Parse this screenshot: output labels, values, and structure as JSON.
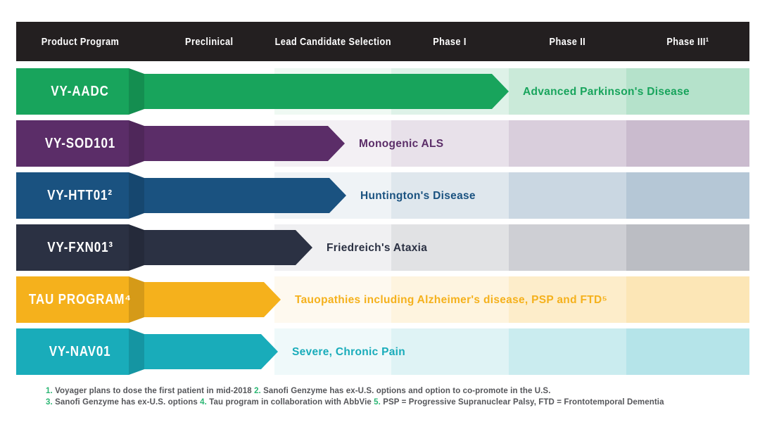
{
  "header": {
    "background": "#231F20",
    "text_color": "#FFFFFF",
    "columns": [
      "Product Program",
      "Preclinical",
      "Lead Candidate Selection",
      "Phase I",
      "Phase II",
      "Phase III¹"
    ]
  },
  "rows": [
    {
      "program": "VY-AADC",
      "indication": "Advanced Parkinson's Disease",
      "color": "#18A45C",
      "bar_end": 700
    },
    {
      "program": "VY-SOD101",
      "indication": "Monogenic ALS",
      "color": "#5B2D68",
      "bar_end": 467
    },
    {
      "program": "VY-HTT01²",
      "indication": "Huntington's Disease",
      "color": "#1A5280",
      "bar_end": 469
    },
    {
      "program": "VY-FXN01³",
      "indication": "Friedreich's Ataxia",
      "color": "#2B3143",
      "bar_end": 421
    },
    {
      "program": "TAU PROGRAM⁴",
      "indication": "Tauopathies including Alzheimer's disease, PSP and FTD⁵",
      "color": "#F5B11C",
      "bar_end": 376
    },
    {
      "program": "VY-NAV01",
      "indication": "Severe, Chronic Pain",
      "color": "#19ACBA",
      "bar_end": 372
    }
  ],
  "footnotes": {
    "accent_color": "#2BB673",
    "text_color": "#55565A",
    "lines": [
      [
        {
          "t": "1.",
          "accent": true
        },
        {
          "t": " Voyager plans to dose the first patient in mid-2018 ",
          "accent": false
        },
        {
          "t": "2.",
          "accent": true
        },
        {
          "t": " Sanofi Genzyme has ex-U.S. options and option to co-promote in the U.S.",
          "accent": false
        }
      ],
      [
        {
          "t": "3.",
          "accent": true
        },
        {
          "t": " Sanofi Genzyme has ex-U.S. options ",
          "accent": false
        },
        {
          "t": "4.",
          "accent": true
        },
        {
          "t": " Tau program in collaboration with AbbVie ",
          "accent": false
        },
        {
          "t": "5.",
          "accent": true
        },
        {
          "t": " PSP = Progressive Supranuclear Palsy, FTD = Frontotemporal Dementia",
          "accent": false
        }
      ]
    ]
  }
}
